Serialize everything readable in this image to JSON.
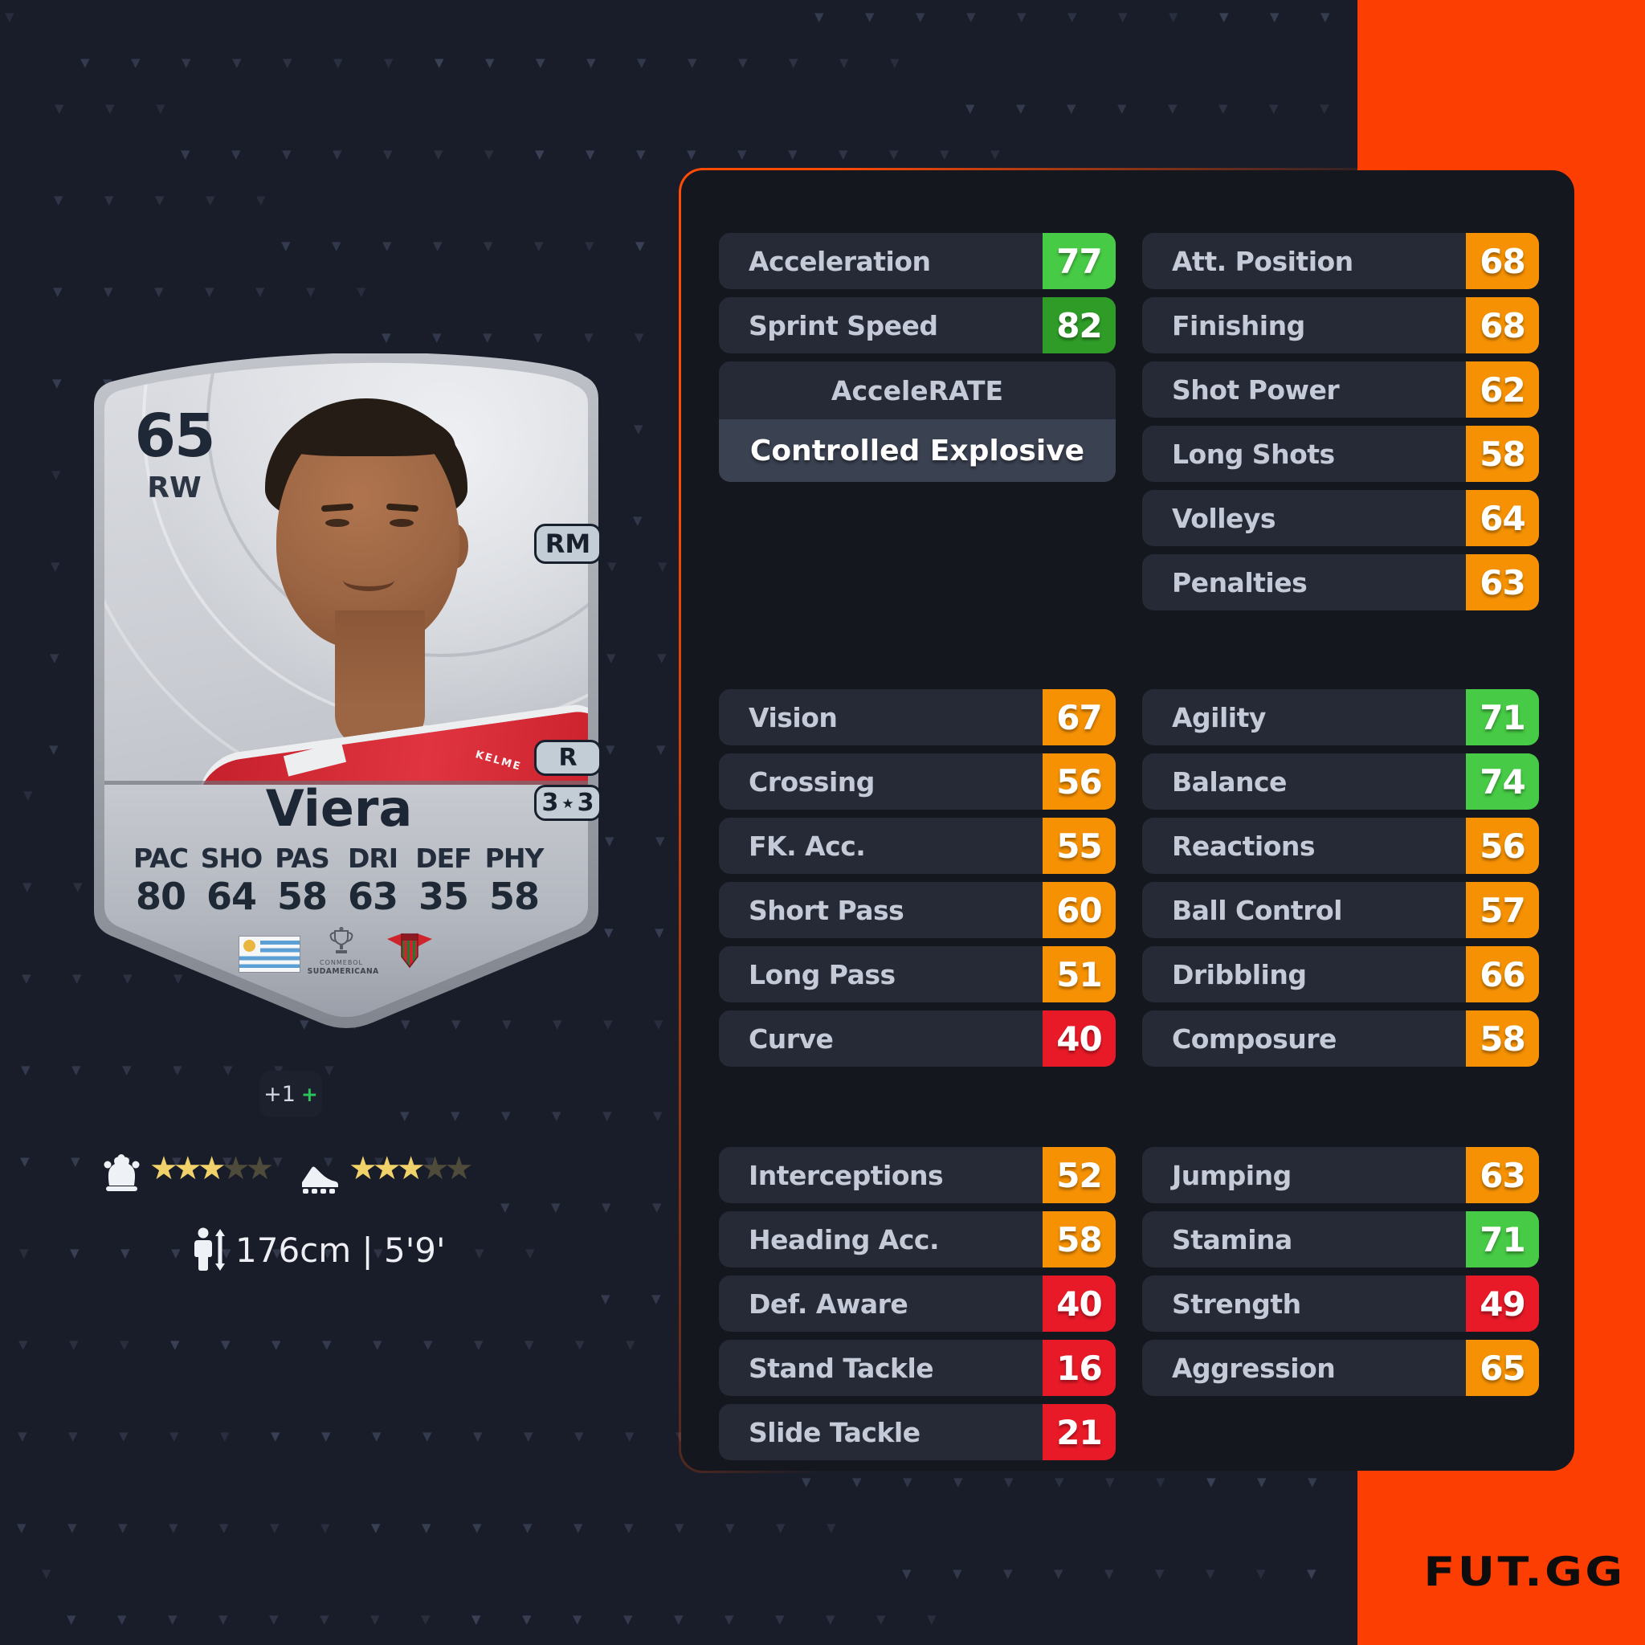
{
  "page": {
    "accent_color": "#fc3e02",
    "background_color": "#191d29",
    "panel_background": "#15171f"
  },
  "brand": {
    "logo_text": "FUT.GG"
  },
  "card": {
    "rating": "65",
    "position": "RW",
    "name": "Viera",
    "jersey_brand_text": "KELME",
    "badges": {
      "alt_position": "RM",
      "preferred_foot": "R",
      "skill_moves": "3",
      "weak_foot": "3",
      "star_symbol": "★"
    },
    "attributes": [
      {
        "label": "PAC",
        "value": "80"
      },
      {
        "label": "SHO",
        "value": "64"
      },
      {
        "label": "PAS",
        "value": "58"
      },
      {
        "label": "DRI",
        "value": "63"
      },
      {
        "label": "DEF",
        "value": "35"
      },
      {
        "label": "PHY",
        "value": "58"
      }
    ],
    "competition": {
      "line1": "CONMEBOL",
      "line2": "SUDAMERICANA"
    },
    "icons": {
      "nation": "uruguay-flag",
      "competition": "sudamericana-trophy",
      "club": "club-crest"
    }
  },
  "meta": {
    "boost": {
      "value": "+1",
      "plus": "+"
    },
    "skill_moves": {
      "filled": 3,
      "total": 5
    },
    "weak_foot": {
      "filled": 3,
      "total": 5
    },
    "height": "176cm | 5'9'"
  },
  "stats": {
    "tier_colors": {
      "high": "#2f9c28",
      "good": "#47ca45",
      "mid": "#f59103",
      "low": "#e81a28"
    },
    "sections": [
      {
        "left": [
          {
            "label": "Acceleration",
            "value": 77
          },
          {
            "label": "Sprint Speed",
            "value": 82
          }
        ],
        "accelerate": {
          "label": "AcceleRATE",
          "value": "Controlled Explosive"
        },
        "right": [
          {
            "label": "Att. Position",
            "value": 68
          },
          {
            "label": "Finishing",
            "value": 68
          },
          {
            "label": "Shot Power",
            "value": 62
          },
          {
            "label": "Long Shots",
            "value": 58
          },
          {
            "label": "Volleys",
            "value": 64
          },
          {
            "label": "Penalties",
            "value": 63
          }
        ]
      },
      {
        "left": [
          {
            "label": "Vision",
            "value": 67
          },
          {
            "label": "Crossing",
            "value": 56
          },
          {
            "label": "FK. Acc.",
            "value": 55
          },
          {
            "label": "Short Pass",
            "value": 60
          },
          {
            "label": "Long Pass",
            "value": 51
          },
          {
            "label": "Curve",
            "value": 40
          }
        ],
        "right": [
          {
            "label": "Agility",
            "value": 71
          },
          {
            "label": "Balance",
            "value": 74
          },
          {
            "label": "Reactions",
            "value": 56
          },
          {
            "label": "Ball Control",
            "value": 57
          },
          {
            "label": "Dribbling",
            "value": 66
          },
          {
            "label": "Composure",
            "value": 58
          }
        ]
      },
      {
        "left": [
          {
            "label": "Interceptions",
            "value": 52
          },
          {
            "label": "Heading Acc.",
            "value": 58
          },
          {
            "label": "Def. Aware",
            "value": 40
          },
          {
            "label": "Stand Tackle",
            "value": 16
          },
          {
            "label": "Slide Tackle",
            "value": 21
          }
        ],
        "right": [
          {
            "label": "Jumping",
            "value": 63
          },
          {
            "label": "Stamina",
            "value": 71
          },
          {
            "label": "Strength",
            "value": 49
          },
          {
            "label": "Aggression",
            "value": 65
          }
        ]
      }
    ]
  }
}
